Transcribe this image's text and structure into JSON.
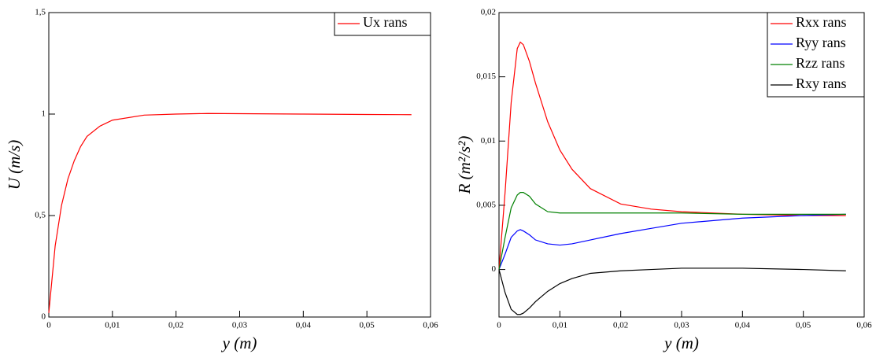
{
  "chart_data": [
    {
      "type": "line",
      "xlabel": "y (m)",
      "ylabel": "U (m/s)",
      "x": [
        0,
        0.001,
        0.002,
        0.003,
        0.004,
        0.005,
        0.006,
        0.008,
        0.01,
        0.015,
        0.02,
        0.025,
        0.03,
        0.04,
        0.05,
        0.057
      ],
      "series": [
        {
          "name": "Ux rans",
          "color": "#ff0000",
          "values": [
            0.02,
            0.35,
            0.55,
            0.68,
            0.77,
            0.84,
            0.89,
            0.94,
            0.97,
            0.995,
            1.0,
            1.003,
            1.002,
            1.0,
            0.998,
            0.997
          ]
        }
      ],
      "xlim": [
        0,
        0.06
      ],
      "ylim": [
        0,
        1.5
      ],
      "xticks": [
        0,
        {
          "value": 0.01,
          "label": "0,01"
        },
        {
          "value": 0.02,
          "label": "0,02"
        },
        {
          "value": 0.03,
          "label": "0,03"
        },
        {
          "value": 0.04,
          "label": "0,04"
        },
        {
          "value": 0.05,
          "label": "0,05"
        },
        {
          "value": 0.06,
          "label": "0,06"
        }
      ],
      "yticks": [
        0,
        {
          "value": 0.5,
          "label": "0,5"
        },
        1,
        {
          "value": 1.5,
          "label": "1,5"
        }
      ],
      "legend": "upper right"
    },
    {
      "type": "line",
      "xlabel": "y (m)",
      "ylabel": "R (m²/s²)",
      "x": [
        0,
        0.001,
        0.002,
        0.003,
        0.0035,
        0.004,
        0.005,
        0.006,
        0.008,
        0.01,
        0.012,
        0.015,
        0.02,
        0.025,
        0.03,
        0.04,
        0.05,
        0.057
      ],
      "series": [
        {
          "name": "Rxx rans",
          "color": "#ff0000",
          "values": [
            0,
            0.006,
            0.013,
            0.0172,
            0.0177,
            0.0175,
            0.0162,
            0.0145,
            0.0115,
            0.0093,
            0.0078,
            0.0063,
            0.0051,
            0.0047,
            0.0045,
            0.0043,
            0.0042,
            0.0042
          ]
        },
        {
          "name": "Ryy rans",
          "color": "#0000ff",
          "values": [
            0,
            0.0012,
            0.0025,
            0.003,
            0.0031,
            0.003,
            0.0027,
            0.0023,
            0.002,
            0.0019,
            0.002,
            0.0023,
            0.0028,
            0.0032,
            0.0036,
            0.004,
            0.0042,
            0.0043
          ]
        },
        {
          "name": "Rzz rans",
          "color": "#008000",
          "values": [
            0,
            0.0025,
            0.0048,
            0.0058,
            0.006,
            0.006,
            0.0057,
            0.0051,
            0.0045,
            0.0044,
            0.0044,
            0.0044,
            0.0044,
            0.0044,
            0.0044,
            0.0043,
            0.0043,
            0.0043
          ]
        },
        {
          "name": "Rxy rans",
          "color": "#000000",
          "values": [
            0,
            -0.0018,
            -0.0031,
            -0.0035,
            -0.0035,
            -0.0034,
            -0.003,
            -0.0025,
            -0.0017,
            -0.0011,
            -0.0007,
            -0.0003,
            -0.0001,
            0,
            0.0001,
            0.0001,
            0,
            -0.0001
          ]
        }
      ],
      "xlim": [
        0,
        0.06
      ],
      "ylim": [
        -0.0037,
        0.02
      ],
      "xticks": [
        0,
        {
          "value": 0.01,
          "label": "0,01"
        },
        {
          "value": 0.02,
          "label": "0,02"
        },
        {
          "value": 0.03,
          "label": "0,03"
        },
        {
          "value": 0.04,
          "label": "0,04"
        },
        {
          "value": 0.05,
          "label": "0,05"
        },
        {
          "value": 0.06,
          "label": "0,06"
        }
      ],
      "yticks": [
        0,
        {
          "value": 0.005,
          "label": "0,005"
        },
        {
          "value": 0.01,
          "label": "0,01"
        },
        {
          "value": 0.015,
          "label": "0,015"
        },
        {
          "value": 0.02,
          "label": "0,02"
        }
      ],
      "legend": "upper right"
    }
  ]
}
